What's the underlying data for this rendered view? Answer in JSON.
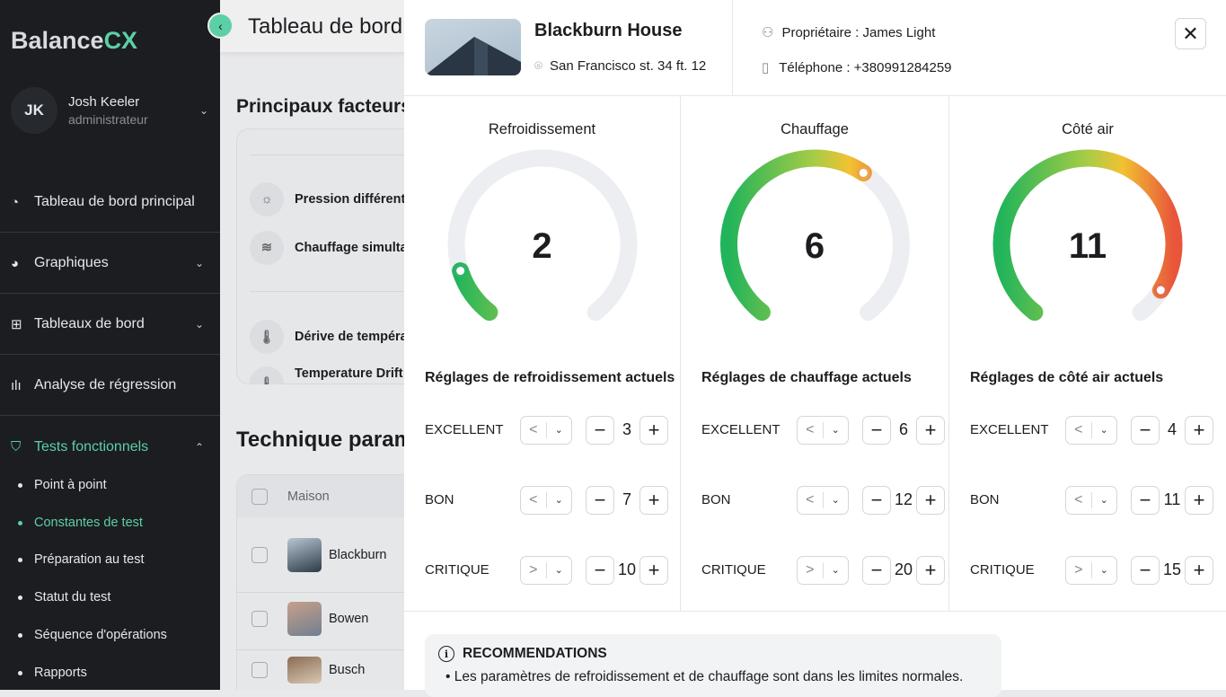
{
  "sidebar": {
    "brand_a": "Balance",
    "brand_b": "CX",
    "user": {
      "initials": "JK",
      "name": "Josh Keeler",
      "role": "administrateur"
    },
    "nav": [
      {
        "label": "Tableau de bord principal",
        "icon": "gauge-icon"
      },
      {
        "label": "Graphiques",
        "icon": "pie-chart-icon"
      },
      {
        "label": "Tableaux de bord",
        "icon": "grid-icon"
      },
      {
        "label": "Analyse de régression",
        "icon": "bar-chart-icon"
      },
      {
        "label": "Tests fonctionnels",
        "icon": "shield-check-icon"
      }
    ],
    "sub": [
      "Point à point",
      "Constantes de test",
      "Préparation au test",
      "Statut du test",
      "Séquence d'opérations",
      "Rapports"
    ],
    "active_sub": "Constantes de test"
  },
  "main": {
    "title": "Tableau de bord",
    "section1": "Principaux facteurs",
    "factors": [
      "Pression différent",
      "Chauffage simulta",
      "Dérive de tempéra",
      "Temperature Drift"
    ],
    "section2": "Technique param",
    "table_header": "Maison",
    "rows": [
      "Blackburn",
      "Bowen",
      "Busch"
    ]
  },
  "panel": {
    "title": "Blackburn House",
    "address": "San Francisco st. 34 ft. 12",
    "owner": "Propriétaire : James Light",
    "phone": "Téléphone : +380991284259",
    "gauges": [
      {
        "title": "Refroidissement",
        "value": "2",
        "fill": 0.12,
        "settings_title": "Réglages de refroidissement actuels",
        "rows": [
          {
            "label": "EXCELLENT",
            "op": "<",
            "value": "3"
          },
          {
            "label": "BON",
            "op": "<",
            "value": "7"
          },
          {
            "label": "CRITIQUE",
            "op": ">",
            "value": "10"
          }
        ]
      },
      {
        "title": "Chauffage",
        "value": "6",
        "fill": 0.62,
        "settings_title": "Réglages de chauffage actuels",
        "rows": [
          {
            "label": "EXCELLENT",
            "op": "<",
            "value": "6"
          },
          {
            "label": "BON",
            "op": "<",
            "value": "12"
          },
          {
            "label": "CRITIQUE",
            "op": ">",
            "value": "20"
          }
        ]
      },
      {
        "title": "Côté air",
        "value": "11",
        "fill": 0.93,
        "settings_title": "Réglages de côté air actuels",
        "rows": [
          {
            "label": "EXCELLENT",
            "op": "<",
            "value": "4"
          },
          {
            "label": "BON",
            "op": "<",
            "value": "11"
          },
          {
            "label": "CRITIQUE",
            "op": ">",
            "value": "15"
          }
        ]
      }
    ],
    "reco_title": "RECOMMENDATIONS",
    "reco_items": [
      "Les paramètres de refroidissement et de chauffage sont dans les limites normales."
    ]
  },
  "colors": {
    "accent": "#5ccfa6",
    "sidebar": "#1b1d21",
    "gauge_green": "#22b45a",
    "gauge_yellow": "#f2c232",
    "gauge_red": "#e8553a"
  }
}
